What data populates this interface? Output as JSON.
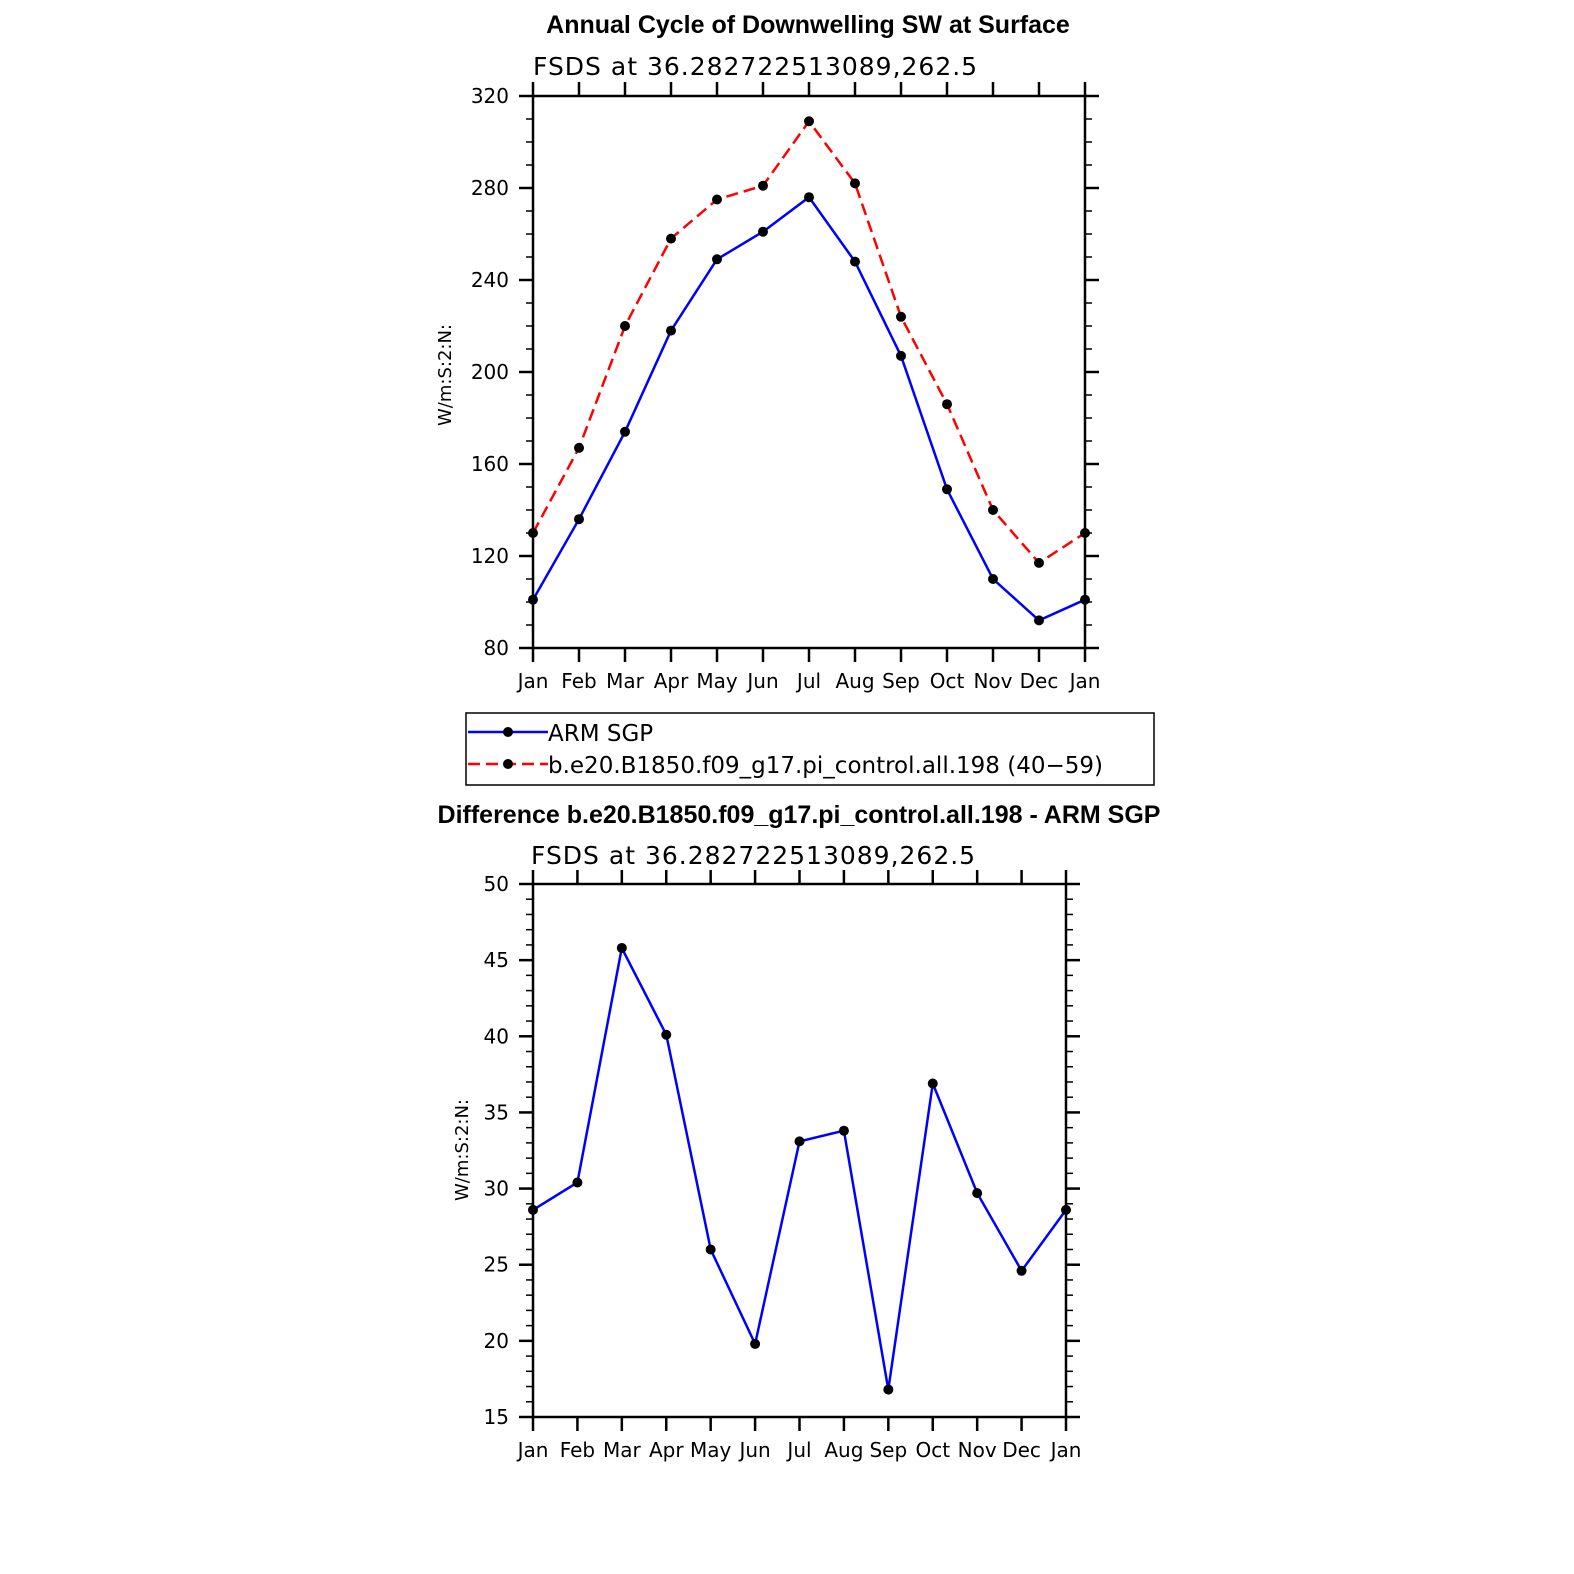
{
  "chart_data": [
    {
      "type": "line",
      "title": "Annual Cycle of Downwelling SW at Surface",
      "subtitle": "FSDS at 36.282722513089,262.5",
      "xlabel": "",
      "ylabel": "W/m:S:2:N:",
      "categories": [
        "Jan",
        "Feb",
        "Mar",
        "Apr",
        "May",
        "Jun",
        "Jul",
        "Aug",
        "Sep",
        "Oct",
        "Nov",
        "Dec",
        "Jan"
      ],
      "ylim": [
        80,
        320
      ],
      "yticks": [
        "80",
        "120",
        "160",
        "200",
        "240",
        "280",
        "320"
      ],
      "grid": false,
      "legend_position": "bottom",
      "series": [
        {
          "name": "ARM SGP",
          "color": "#0000ff",
          "dash": "solid",
          "values": [
            101,
            136,
            174,
            218,
            249,
            261,
            276,
            248,
            207,
            149,
            110,
            92,
            101
          ]
        },
        {
          "name": "b.e20.B1850.f09_g17.pi_control.all.198 (40−59)",
          "color": "#ff0000",
          "dash": "dashed",
          "values": [
            130,
            167,
            220,
            258,
            275,
            281,
            309,
            282,
            224,
            186,
            140,
            117,
            130
          ]
        }
      ]
    },
    {
      "type": "line",
      "title": "Difference b.e20.B1850.f09_g17.pi_control.all.198 - ARM SGP",
      "subtitle": "FSDS at 36.282722513089,262.5",
      "xlabel": "",
      "ylabel": "W/m:S:2:N:",
      "categories": [
        "Jan",
        "Feb",
        "Mar",
        "Apr",
        "May",
        "Jun",
        "Jul",
        "Aug",
        "Sep",
        "Oct",
        "Nov",
        "Dec",
        "Jan"
      ],
      "ylim": [
        15,
        50
      ],
      "yticks": [
        "15",
        "20",
        "25",
        "30",
        "35",
        "40",
        "45",
        "50"
      ],
      "grid": false,
      "series": [
        {
          "color": "#0000ff",
          "dash": "solid",
          "values": [
            28.6,
            30.4,
            45.8,
            40.1,
            26.0,
            19.8,
            33.1,
            33.8,
            16.8,
            36.9,
            29.7,
            24.6,
            28.6
          ]
        }
      ]
    }
  ]
}
